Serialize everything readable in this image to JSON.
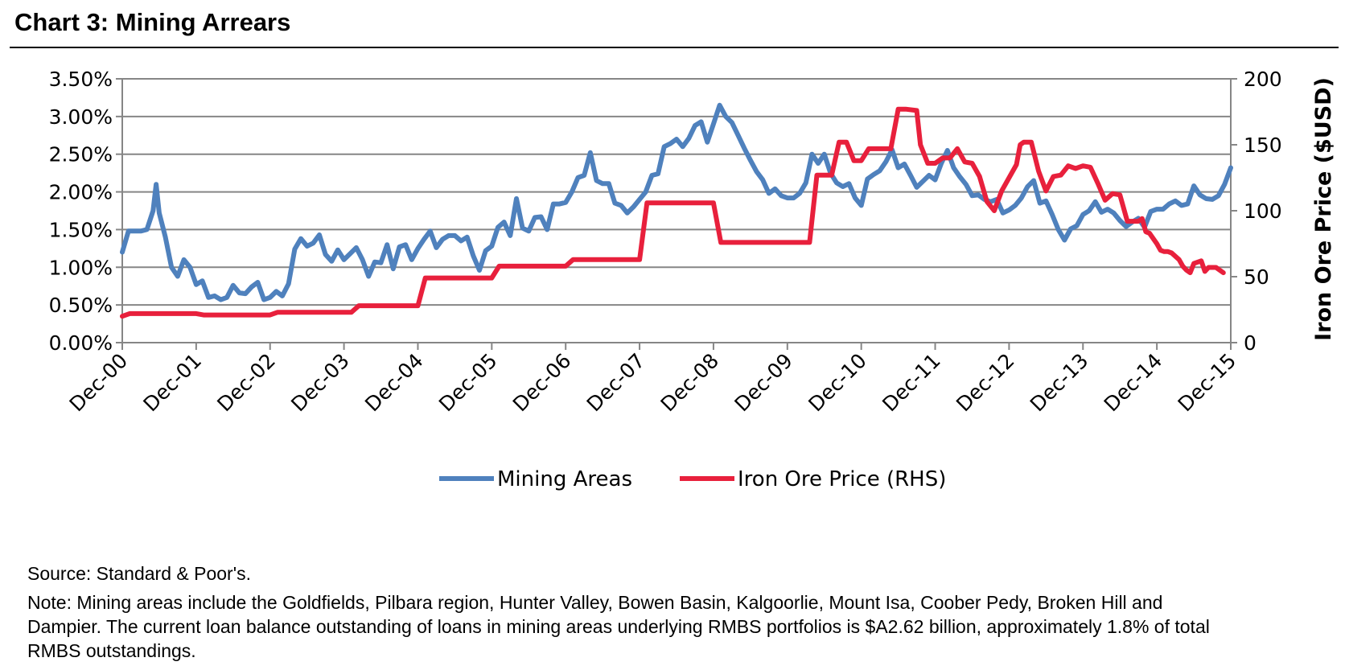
{
  "header": {
    "title": "Chart 3: Mining Arrears"
  },
  "chart_data": {
    "type": "line",
    "title": "Chart 3: Mining Arrears",
    "xlabel": "",
    "ylabel": "",
    "y2label": "Iron Ore Price ($USD)",
    "x_tick_labels": [
      "Dec-00",
      "Dec-01",
      "Dec-02",
      "Dec-03",
      "Dec-04",
      "Dec-05",
      "Dec-06",
      "Dec-07",
      "Dec-08",
      "Dec-09",
      "Dec-10",
      "Dec-11",
      "Dec-12",
      "Dec-13",
      "Dec-14",
      "Dec-15"
    ],
    "x_range": [
      0,
      15
    ],
    "y_left_ticks": [
      "0.00%",
      "0.50%",
      "1.00%",
      "1.50%",
      "2.00%",
      "2.50%",
      "3.00%",
      "3.50%"
    ],
    "y_left_range": [
      0,
      3.5
    ],
    "y_right_ticks": [
      "0",
      "50",
      "100",
      "150",
      "200"
    ],
    "y_right_range": [
      0,
      200
    ],
    "legend_position": "bottom",
    "series": [
      {
        "name": "Mining Areas",
        "axis": "left",
        "color": "#4f81bd",
        "x": [
          0.0,
          0.0833,
          0.1667,
          0.25,
          0.3333,
          0.4167,
          0.4583,
          0.5,
          0.5833,
          0.6667,
          0.75,
          0.8333,
          0.9167,
          1.0,
          1.0833,
          1.1667,
          1.25,
          1.3333,
          1.4167,
          1.5,
          1.5833,
          1.6667,
          1.75,
          1.8333,
          1.9167,
          2.0,
          2.0833,
          2.1667,
          2.25,
          2.3333,
          2.4167,
          2.5,
          2.5833,
          2.6667,
          2.75,
          2.8333,
          2.9167,
          3.0,
          3.0833,
          3.1667,
          3.25,
          3.3333,
          3.4167,
          3.5,
          3.5833,
          3.6667,
          3.75,
          3.8333,
          3.9167,
          4.0,
          4.0833,
          4.1667,
          4.25,
          4.3333,
          4.4167,
          4.5,
          4.5833,
          4.6667,
          4.75,
          4.8333,
          4.9167,
          5.0,
          5.0833,
          5.1667,
          5.25,
          5.3333,
          5.4167,
          5.5,
          5.5833,
          5.6667,
          5.75,
          5.8333,
          5.9167,
          6.0,
          6.0833,
          6.1667,
          6.25,
          6.3333,
          6.4167,
          6.5,
          6.5833,
          6.6667,
          6.75,
          6.8333,
          6.9167,
          7.0,
          7.0833,
          7.1667,
          7.25,
          7.3333,
          7.4167,
          7.5,
          7.5833,
          7.6667,
          7.75,
          7.8333,
          7.9167,
          8.0,
          8.0833,
          8.1667,
          8.25,
          8.3333,
          8.4167,
          8.5,
          8.5833,
          8.6667,
          8.75,
          8.8333,
          8.9167,
          9.0,
          9.0833,
          9.1667,
          9.25,
          9.3333,
          9.4167,
          9.5,
          9.5833,
          9.6667,
          9.75,
          9.8333,
          9.9167,
          10.0,
          10.0833,
          10.1667,
          10.25,
          10.3333,
          10.4167,
          10.5,
          10.5833,
          10.6667,
          10.75,
          10.8333,
          10.9167,
          11.0,
          11.0833,
          11.1667,
          11.25,
          11.3333,
          11.4167,
          11.5,
          11.5833,
          11.6667,
          11.75,
          11.8333,
          11.9167,
          12.0,
          12.0833,
          12.1667,
          12.25,
          12.3333,
          12.4167,
          12.5,
          12.5833,
          12.6667,
          12.75,
          12.8333,
          12.9167,
          13.0,
          13.0833,
          13.1667,
          13.25,
          13.3333,
          13.4167,
          13.5,
          13.5833,
          13.6667,
          13.75,
          13.8333,
          13.9167,
          14.0,
          14.0833,
          14.1667,
          14.25,
          14.3333,
          14.4167,
          14.5,
          14.5833,
          14.6667,
          14.75,
          14.8333,
          14.9167,
          15.0
        ],
        "values": [
          1.2,
          1.48,
          1.48,
          1.48,
          1.5,
          1.75,
          2.1,
          1.72,
          1.4,
          1.0,
          0.88,
          1.1,
          1.0,
          0.77,
          0.82,
          0.6,
          0.62,
          0.57,
          0.6,
          0.76,
          0.66,
          0.65,
          0.74,
          0.8,
          0.57,
          0.6,
          0.68,
          0.62,
          0.78,
          1.24,
          1.38,
          1.28,
          1.32,
          1.43,
          1.17,
          1.08,
          1.23,
          1.1,
          1.18,
          1.26,
          1.1,
          0.88,
          1.07,
          1.06,
          1.3,
          0.98,
          1.27,
          1.3,
          1.1,
          1.25,
          1.37,
          1.48,
          1.26,
          1.37,
          1.42,
          1.42,
          1.35,
          1.4,
          1.15,
          0.96,
          1.22,
          1.28,
          1.53,
          1.6,
          1.42,
          1.91,
          1.52,
          1.48,
          1.66,
          1.67,
          1.5,
          1.84,
          1.84,
          1.86,
          2.0,
          2.19,
          2.22,
          2.52,
          2.15,
          2.11,
          2.11,
          1.85,
          1.82,
          1.72,
          1.8,
          1.9,
          2.0,
          2.22,
          2.24,
          2.6,
          2.64,
          2.7,
          2.6,
          2.71,
          2.88,
          2.93,
          2.66,
          2.9,
          3.15,
          3.0,
          2.92,
          2.75,
          2.58,
          2.42,
          2.27,
          2.16,
          1.98,
          2.04,
          1.95,
          1.92,
          1.92,
          1.98,
          2.12,
          2.5,
          2.38,
          2.5,
          2.25,
          2.12,
          2.07,
          2.11,
          1.92,
          1.82,
          2.17,
          2.23,
          2.28,
          2.4,
          2.56,
          2.32,
          2.37,
          2.22,
          2.06,
          2.14,
          2.22,
          2.16,
          2.38,
          2.55,
          2.32,
          2.2,
          2.1,
          1.95,
          1.96,
          1.9,
          1.87,
          1.9,
          1.72,
          1.76,
          1.82,
          1.92,
          2.07,
          2.15,
          1.85,
          1.88,
          1.7,
          1.5,
          1.36,
          1.51,
          1.55,
          1.7,
          1.75,
          1.87,
          1.73,
          1.77,
          1.72,
          1.62,
          1.54,
          1.6,
          1.65,
          1.53,
          1.74,
          1.77,
          1.77,
          1.84,
          1.88,
          1.82,
          1.84,
          2.08,
          1.96,
          1.91,
          1.9,
          1.95,
          2.1,
          2.32
        ]
      },
      {
        "name": "Iron Ore Price (RHS)",
        "axis": "right",
        "color": "#e8203c",
        "x": [
          0.0,
          0.1,
          1.0,
          1.1,
          2.0,
          2.1,
          3.1,
          3.2,
          4.0,
          4.1,
          5.0,
          5.1,
          6.0,
          6.1,
          7.0,
          7.1,
          8.0,
          8.1,
          8.5,
          9.3,
          9.4,
          9.6,
          9.7,
          9.8,
          9.9,
          10.0,
          10.1,
          10.15,
          10.4,
          10.5,
          10.6,
          10.75,
          10.8,
          10.9,
          11.0,
          11.1,
          11.2,
          11.3,
          11.4,
          11.5,
          11.6,
          11.7,
          11.8,
          11.9,
          12.0,
          12.1,
          12.15,
          12.2,
          12.25,
          12.3,
          12.4,
          12.5,
          12.6,
          12.7,
          12.8,
          12.9,
          13.0,
          13.1,
          13.2,
          13.3,
          13.4,
          13.5,
          13.6,
          13.7,
          13.75,
          13.8,
          13.85,
          13.9,
          14.0,
          14.05,
          14.1,
          14.15,
          14.2,
          14.3,
          14.35,
          14.4,
          14.45,
          14.5,
          14.6,
          14.65,
          14.7,
          14.8,
          14.85,
          14.9
        ],
        "values": [
          20,
          22,
          22,
          21,
          21,
          23,
          23,
          28,
          28,
          49,
          49,
          58,
          58,
          63,
          63,
          106,
          106,
          76,
          76,
          76,
          127,
          127,
          152,
          152,
          138,
          138,
          147,
          147,
          147,
          177,
          177,
          176,
          150,
          136,
          136,
          140,
          140,
          147,
          137,
          136,
          126,
          107,
          100,
          115,
          125,
          135,
          150,
          152,
          152,
          152,
          130,
          115,
          126,
          127,
          134,
          132,
          134,
          133,
          121,
          108,
          113,
          112,
          92,
          92,
          92,
          94,
          84,
          83,
          75,
          70,
          69,
          69,
          68,
          63,
          58,
          55,
          53,
          60,
          62,
          54,
          57,
          57,
          55,
          53
        ]
      }
    ]
  },
  "legend": {
    "items": [
      {
        "label": "Mining Areas",
        "color": "#4f81bd"
      },
      {
        "label": "Iron Ore Price (RHS)",
        "color": "#e8203c"
      }
    ]
  },
  "footer": {
    "source": "Source: Standard & Poor's.",
    "note": "Note: Mining areas include the Goldfields, Pilbara region, Hunter Valley, Bowen Basin, Kalgoorlie, Mount Isa, Coober Pedy, Broken Hill and Dampier. The current loan balance outstanding of loans in mining areas underlying RMBS portfolios is $A2.62 billion, approximately 1.8% of total RMBS outstandings."
  }
}
